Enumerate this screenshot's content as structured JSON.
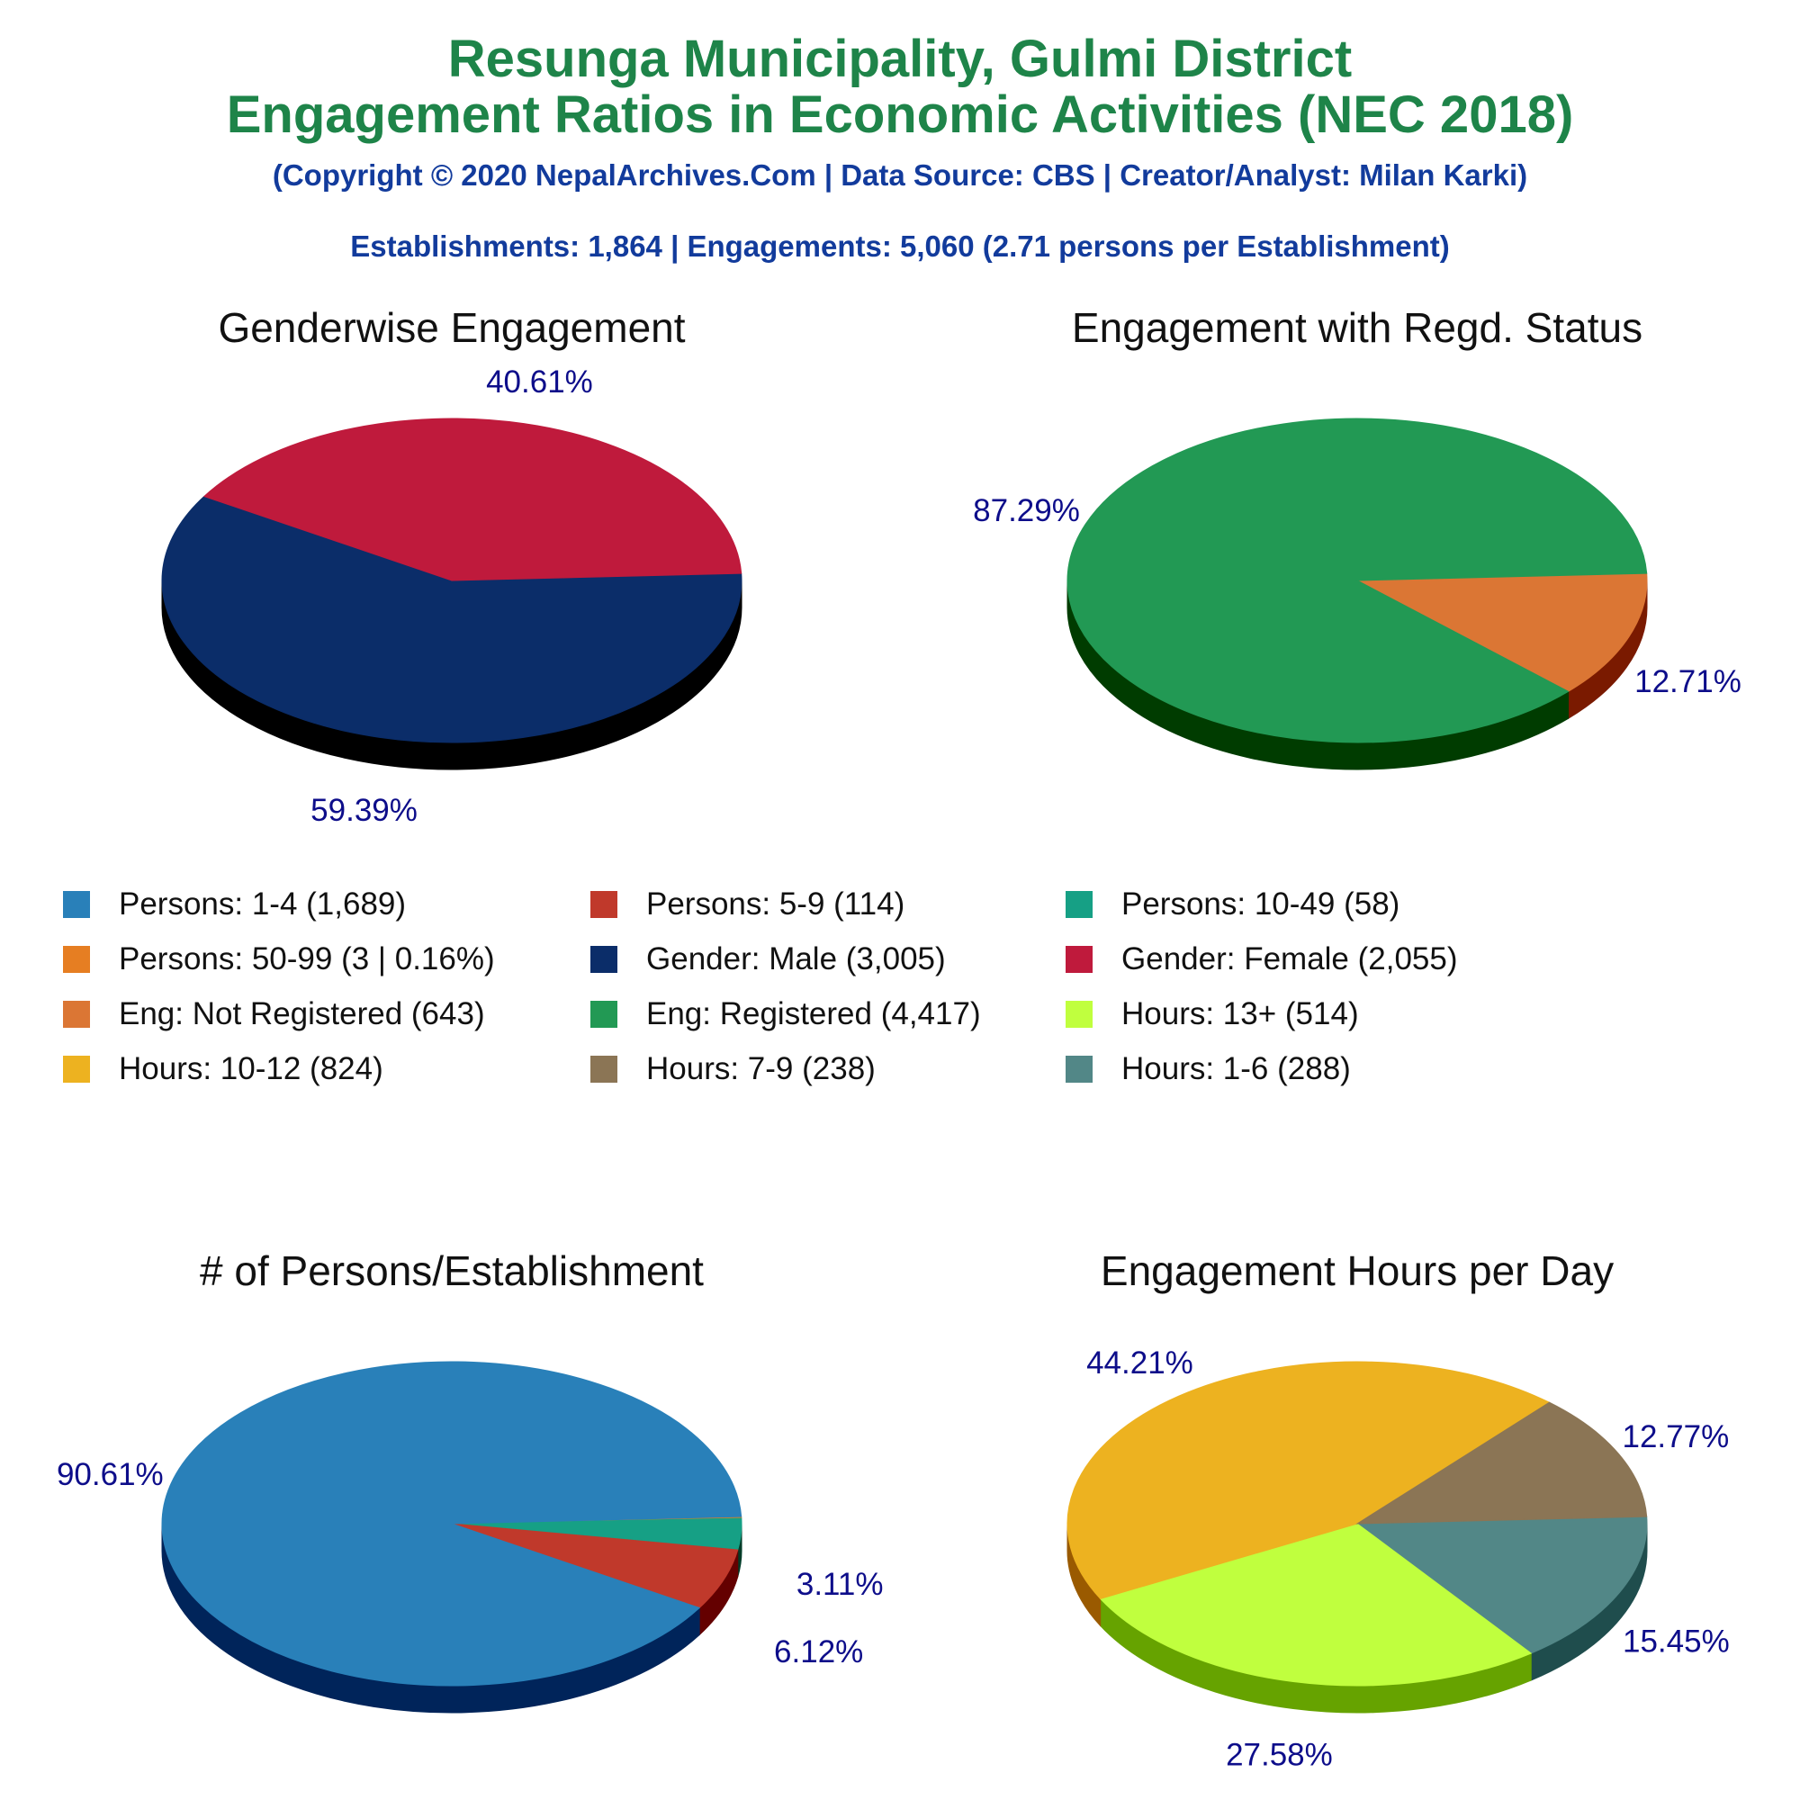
{
  "header": {
    "title_line1": "Resunga Municipality, Gulmi District",
    "title_line2": "Engagement Ratios in Economic Activities (NEC 2018)",
    "copyright": "(Copyright © 2020 NepalArchives.Com | Data Source: CBS | Creator/Analyst: Milan Karki)",
    "summary": "Establishments: 1,864 | Engagements: 5,060 (2.71 persons per Establishment)"
  },
  "legend": [
    {
      "label": "Persons: 1-4 (1,689)",
      "color": "#2980b9"
    },
    {
      "label": "Persons: 5-9 (114)",
      "color": "#c0392b"
    },
    {
      "label": "Persons: 10-49 (58)",
      "color": "#16a085"
    },
    {
      "label": "Persons: 50-99 (3 | 0.16%)",
      "color": "#e67e22"
    },
    {
      "label": "Gender: Male (3,005)",
      "color": "#0b2d69"
    },
    {
      "label": "Gender: Female (2,055)",
      "color": "#bf1a3c"
    },
    {
      "label": "Eng: Not Registered (643)",
      "color": "#db7634"
    },
    {
      "label": "Eng: Registered (4,417)",
      "color": "#229954"
    },
    {
      "label": "Hours: 13+ (514)",
      "color": "#c0ff3e"
    },
    {
      "label": "Hours: 10-12 (824)",
      "color": "#edb220"
    },
    {
      "label": "Hours: 7-9 (238)",
      "color": "#8b7555"
    },
    {
      "label": "Hours: 1-6 (288)",
      "color": "#528787"
    }
  ],
  "chart_data": [
    {
      "type": "pie",
      "title": "Genderwise Engagement",
      "slices": [
        {
          "name": "Gender: Male",
          "value": 3005,
          "label": "59.39%",
          "color": "#0b2d69",
          "side": "#000000"
        },
        {
          "name": "Gender: Female",
          "value": 2055,
          "label": "40.61%",
          "color": "#bf1a3c",
          "side": "#640000"
        }
      ]
    },
    {
      "type": "pie",
      "title": "Engagement with Regd. Status",
      "slices": [
        {
          "name": "Eng: Not Registered",
          "value": 643,
          "label": "12.71%",
          "color": "#db7634",
          "side": "#7a1a00"
        },
        {
          "name": "Eng: Registered",
          "value": 4417,
          "label": "87.29%",
          "color": "#229954",
          "side": "#003c00"
        }
      ]
    },
    {
      "type": "pie",
      "title": "# of Persons/Establishment",
      "slices": [
        {
          "name": "Persons: 50-99",
          "value": 3,
          "label": "",
          "color": "#e67e22",
          "side": "#7a3a00"
        },
        {
          "name": "Persons: 10-49",
          "value": 58,
          "label": "3.11%",
          "color": "#16a085",
          "side": "#003c28"
        },
        {
          "name": "Persons: 5-9",
          "value": 114,
          "label": "6.12%",
          "color": "#c0392b",
          "side": "#640000"
        },
        {
          "name": "Persons: 1-4",
          "value": 1689,
          "label": "90.61%",
          "color": "#2980b9",
          "side": "#00245a"
        }
      ]
    },
    {
      "type": "pie",
      "title": "Engagement Hours per Day",
      "slices": [
        {
          "name": "Hours: 1-6",
          "value": 288,
          "label": "15.45%",
          "color": "#528787",
          "side": "#1f4d4d"
        },
        {
          "name": "Hours: 13+",
          "value": 514,
          "label": "27.58%",
          "color": "#c0ff3e",
          "side": "#66a300"
        },
        {
          "name": "Hours: 10-12",
          "value": 824,
          "label": "44.21%",
          "color": "#edb220",
          "side": "#9a5a00"
        },
        {
          "name": "Hours: 7-9",
          "value": 238,
          "label": "12.77%",
          "color": "#8b7555",
          "side": "#4a3a20"
        }
      ]
    }
  ]
}
